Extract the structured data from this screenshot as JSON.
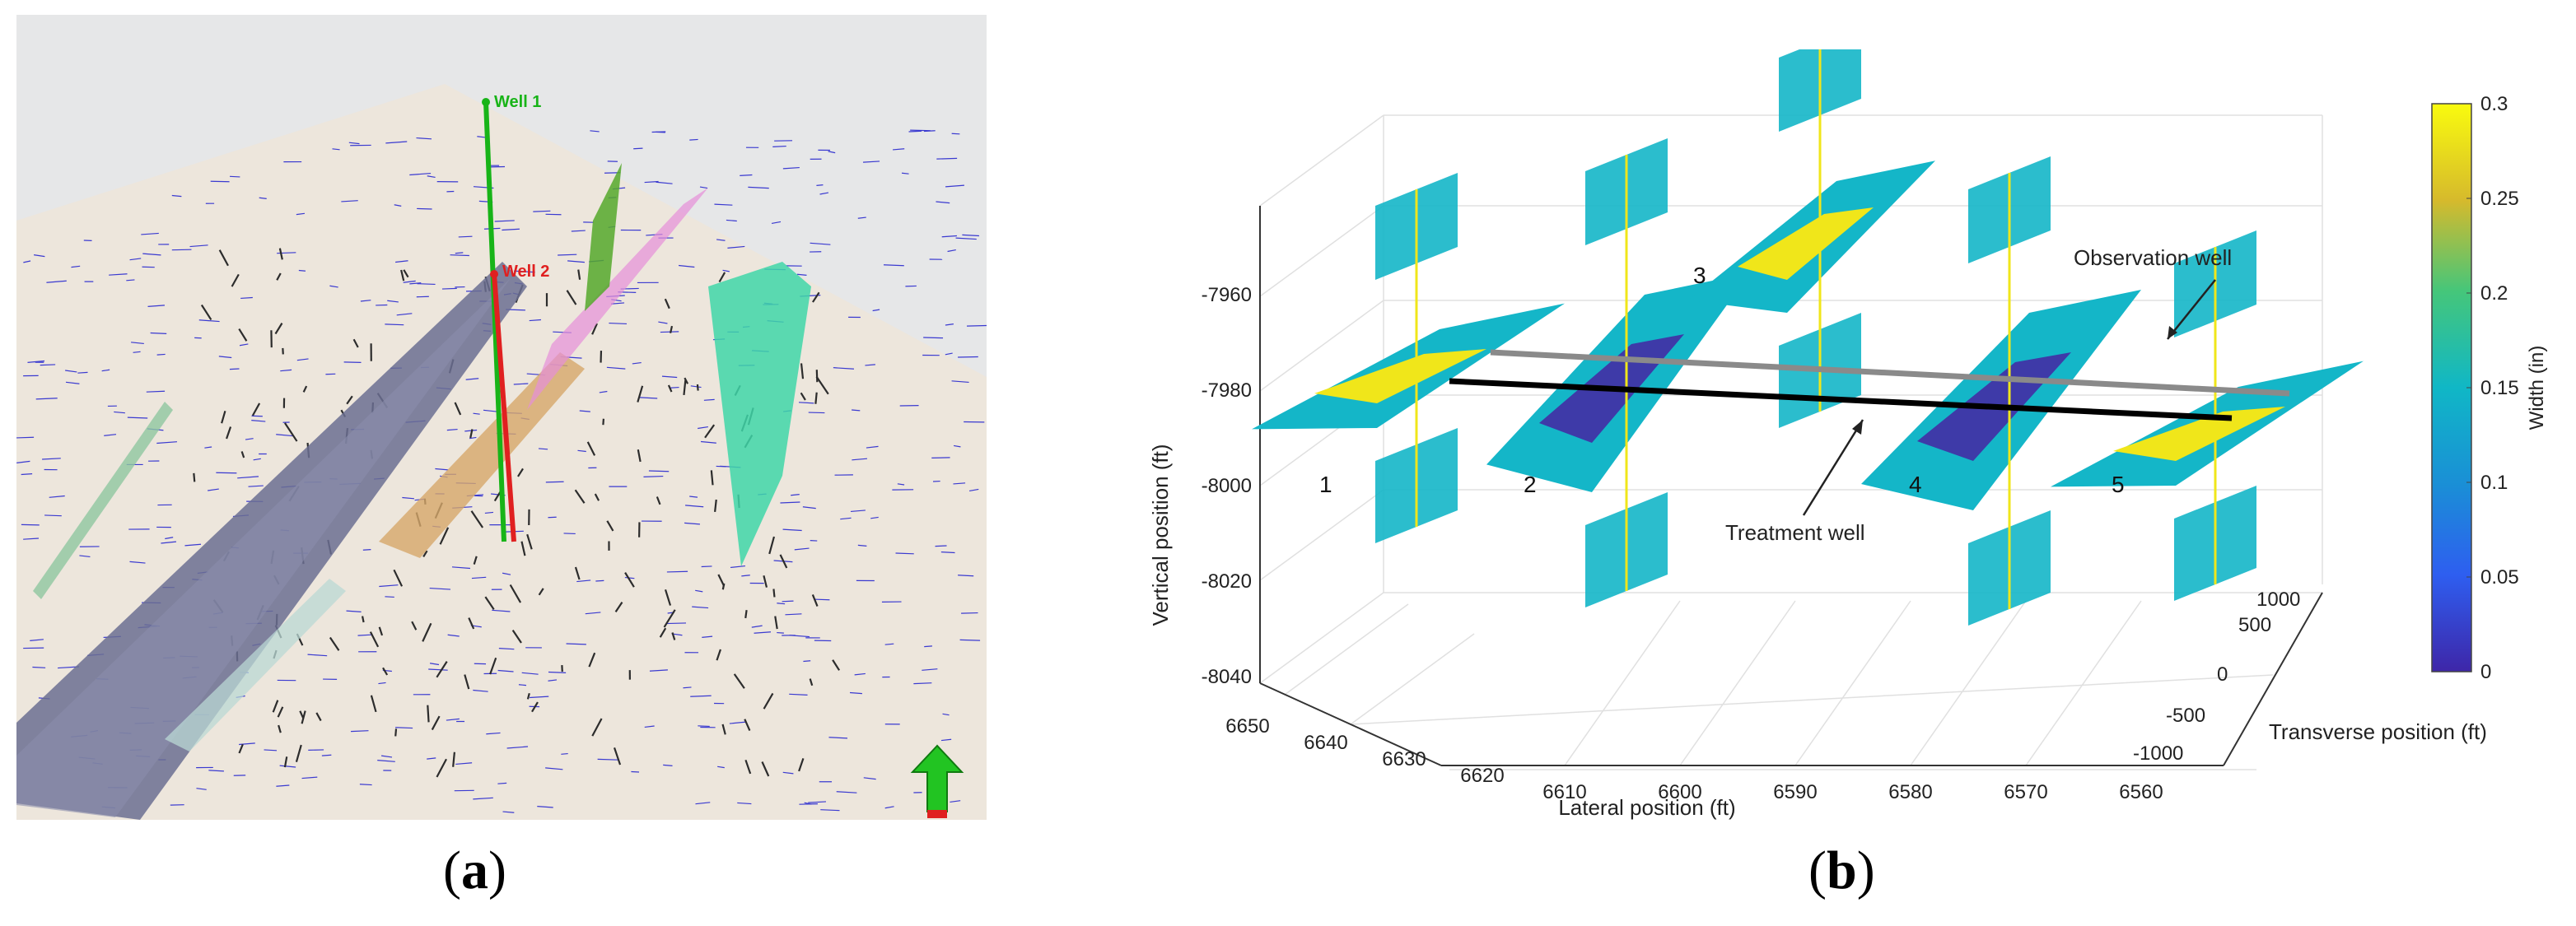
{
  "panel_a": {
    "caption": [
      "(",
      "a",
      ")"
    ],
    "wells": [
      {
        "label": "Well 1",
        "color": "#18b418"
      },
      {
        "label": "Well 2",
        "color": "#e02020"
      }
    ],
    "colors": {
      "sky": "#e6e7e8",
      "ground": "#ede6dc",
      "fault_dark": "#6b6f92",
      "fault_green": "#66ccaa",
      "fault_orange": "#d6a86a",
      "fault_pink": "#e58fd8",
      "fracture_blue": "#3a3ad0",
      "fracture_black": "#2c2c2c"
    },
    "icons": [
      "north-arrow-icon"
    ]
  },
  "panel_b": {
    "caption": [
      "(",
      "b",
      ")"
    ],
    "chart_data": {
      "type": "3d-fracture-plot",
      "xlabel": "Lateral position (ft)",
      "ylabel": "Transverse position (ft)",
      "zlabel": "Vertical position (ft)",
      "x_ticks": [
        "6650",
        "6640",
        "6630",
        "6620",
        "6610",
        "6600",
        "6590",
        "6580",
        "6570",
        "6560"
      ],
      "y_ticks": [
        "-1000",
        "-500",
        "0",
        "500",
        "1000"
      ],
      "z_ticks": [
        "-7960",
        "-7980",
        "-8000",
        "-8020",
        "-8040"
      ],
      "colorbar": {
        "label": "Width (in)",
        "ticks": [
          "0.3",
          "0.25",
          "0.2",
          "0.15",
          "0.1",
          "0.05",
          "0"
        ],
        "min": 0,
        "max": 0.3,
        "colormap": "parula"
      },
      "annotations": {
        "observation_well": "Observation well",
        "treatment_well": "Treatment well"
      },
      "fracture_labels": [
        "1",
        "2",
        "3",
        "4",
        "5"
      ],
      "grid": true
    }
  }
}
